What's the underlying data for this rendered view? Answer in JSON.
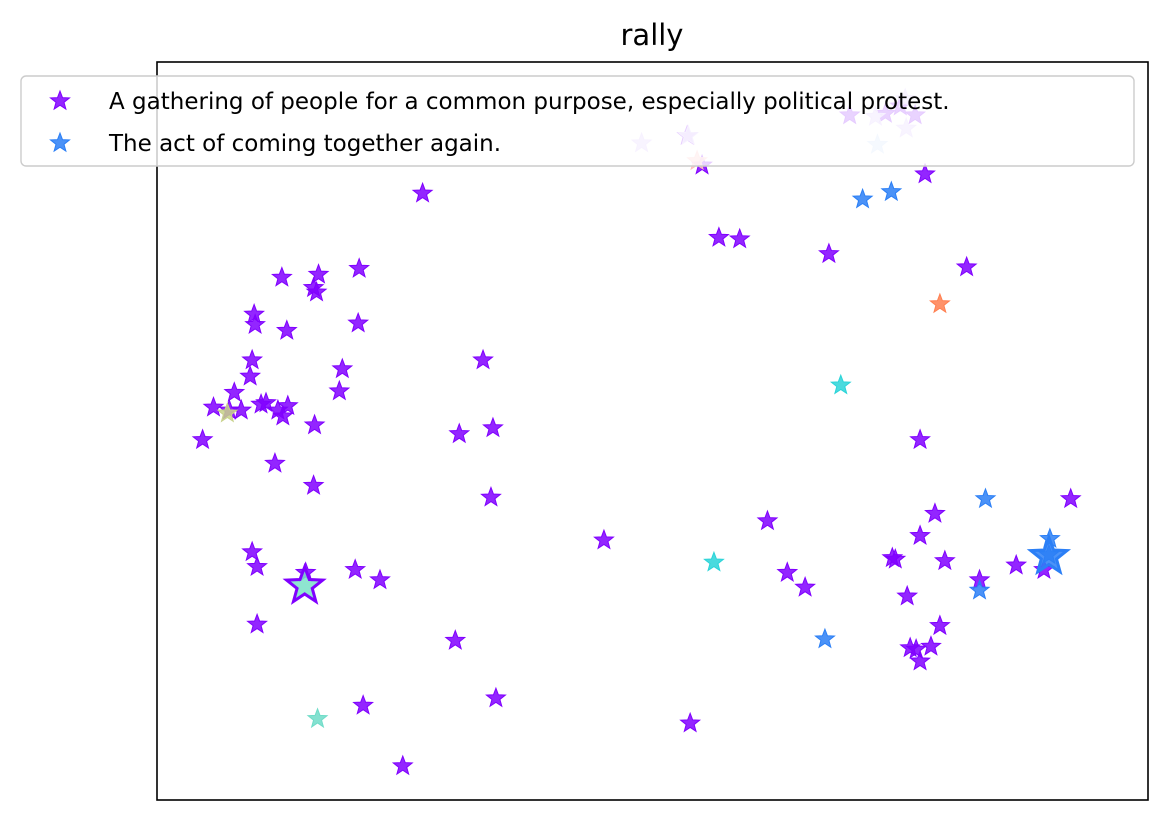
{
  "chart_data": {
    "type": "scatter",
    "title": "rally",
    "xlabel": "",
    "ylabel": "",
    "xlim": [
      0,
      100
    ],
    "ylim": [
      0,
      100
    ],
    "grid": false,
    "ticks": false,
    "legend": {
      "placement": "top",
      "marker": "star"
    },
    "series": [
      {
        "name": "A gathering of people for a common purpose, especially political protest.",
        "color": "#8000ff",
        "points": [
          [
            26.8,
            82.2
          ],
          [
            12.6,
            70.8
          ],
          [
            16.3,
            71.2
          ],
          [
            15.8,
            69.4
          ],
          [
            20.4,
            72.0
          ],
          [
            16.1,
            68.8
          ],
          [
            20.3,
            64.6
          ],
          [
            9.8,
            65.8
          ],
          [
            9.9,
            64.4
          ],
          [
            13.1,
            63.6
          ],
          [
            9.6,
            59.6
          ],
          [
            9.4,
            57.4
          ],
          [
            18.7,
            58.4
          ],
          [
            18.4,
            55.4
          ],
          [
            5.7,
            53.2
          ],
          [
            7.8,
            55.2
          ],
          [
            7.3,
            52.8
          ],
          [
            8.5,
            52.8
          ],
          [
            10.5,
            53.6
          ],
          [
            11.0,
            53.8
          ],
          [
            12.2,
            52.8
          ],
          [
            12.7,
            52.0
          ],
          [
            13.2,
            53.4
          ],
          [
            4.6,
            48.8
          ],
          [
            15.9,
            50.8
          ],
          [
            11.9,
            45.6
          ],
          [
            15.8,
            42.6
          ],
          [
            9.6,
            33.6
          ],
          [
            10.1,
            31.6
          ],
          [
            20.0,
            31.2
          ],
          [
            22.5,
            29.8
          ],
          [
            10.1,
            23.8
          ],
          [
            32.9,
            59.6
          ],
          [
            30.5,
            49.6
          ],
          [
            33.9,
            50.4
          ],
          [
            33.7,
            41.0
          ],
          [
            45.1,
            35.2
          ],
          [
            30.1,
            21.6
          ],
          [
            34.2,
            13.8
          ],
          [
            20.8,
            12.8
          ],
          [
            24.8,
            4.6
          ],
          [
            53.8,
            10.4
          ],
          [
            75.0,
            94.0
          ],
          [
            73.5,
            93.0
          ],
          [
            76.5,
            92.8
          ],
          [
            69.9,
            92.8
          ],
          [
            53.5,
            90.0
          ],
          [
            55.0,
            86.0
          ],
          [
            77.5,
            84.8
          ],
          [
            56.7,
            76.2
          ],
          [
            58.8,
            76.0
          ],
          [
            67.8,
            74.0
          ],
          [
            81.7,
            72.2
          ],
          [
            77.0,
            48.8
          ],
          [
            61.6,
            37.8
          ],
          [
            78.5,
            38.8
          ],
          [
            77.0,
            35.8
          ],
          [
            74.2,
            32.8
          ],
          [
            74.5,
            32.6
          ],
          [
            79.5,
            32.4
          ],
          [
            63.6,
            30.8
          ],
          [
            65.4,
            28.8
          ],
          [
            75.7,
            27.6
          ],
          [
            83.0,
            29.8
          ],
          [
            86.7,
            31.8
          ],
          [
            89.5,
            31.2
          ],
          [
            92.2,
            40.8
          ],
          [
            79.0,
            23.6
          ],
          [
            76.0,
            20.6
          ],
          [
            76.6,
            20.4
          ],
          [
            78.1,
            20.8
          ],
          [
            77.0,
            18.8
          ],
          [
            15.0,
            30.8
          ]
        ]
      },
      {
        "name": "The act of coming together again.",
        "color": "#2b7ff6",
        "points": [
          [
            71.2,
            81.4
          ],
          [
            74.1,
            82.4
          ],
          [
            83.6,
            40.8
          ],
          [
            90.1,
            35.4
          ],
          [
            83.0,
            28.4
          ],
          [
            67.4,
            21.8
          ],
          [
            90.0,
            33.2
          ]
        ]
      },
      {
        "name": "",
        "color": "#d4bcff",
        "points": [
          [
            75.5,
            95.0
          ],
          [
            53.6,
            90.0
          ],
          [
            48.9,
            89.0
          ],
          [
            72.5,
            92.6
          ],
          [
            75.6,
            91.0
          ]
        ]
      },
      {
        "name": "",
        "color": "#ffbcbc",
        "points": [
          [
            54.5,
            86.6
          ]
        ]
      },
      {
        "name": "",
        "color": "#c6ddfa",
        "points": [
          [
            72.7,
            88.8
          ]
        ]
      },
      {
        "name": "",
        "color": "#ff7f50",
        "points": [
          [
            79.0,
            67.2
          ]
        ]
      },
      {
        "name": "",
        "color": "#2ad4d8",
        "points": [
          [
            69.0,
            56.2
          ],
          [
            56.2,
            32.2
          ]
        ]
      },
      {
        "name": "",
        "color": "#c8d28a",
        "points": [
          [
            7.1,
            52.4
          ]
        ]
      },
      {
        "name": "",
        "color": "#6fdcc8",
        "points": [
          [
            16.2,
            11.0
          ]
        ]
      }
    ],
    "highlights": [
      {
        "x": 14.9,
        "y": 29.0,
        "fill": "#7ae0c8",
        "edge": "#8000ff"
      },
      {
        "x": 90.0,
        "y": 33.0,
        "fill": "#2b7ff6",
        "edge": "#2b7ff6"
      }
    ]
  }
}
